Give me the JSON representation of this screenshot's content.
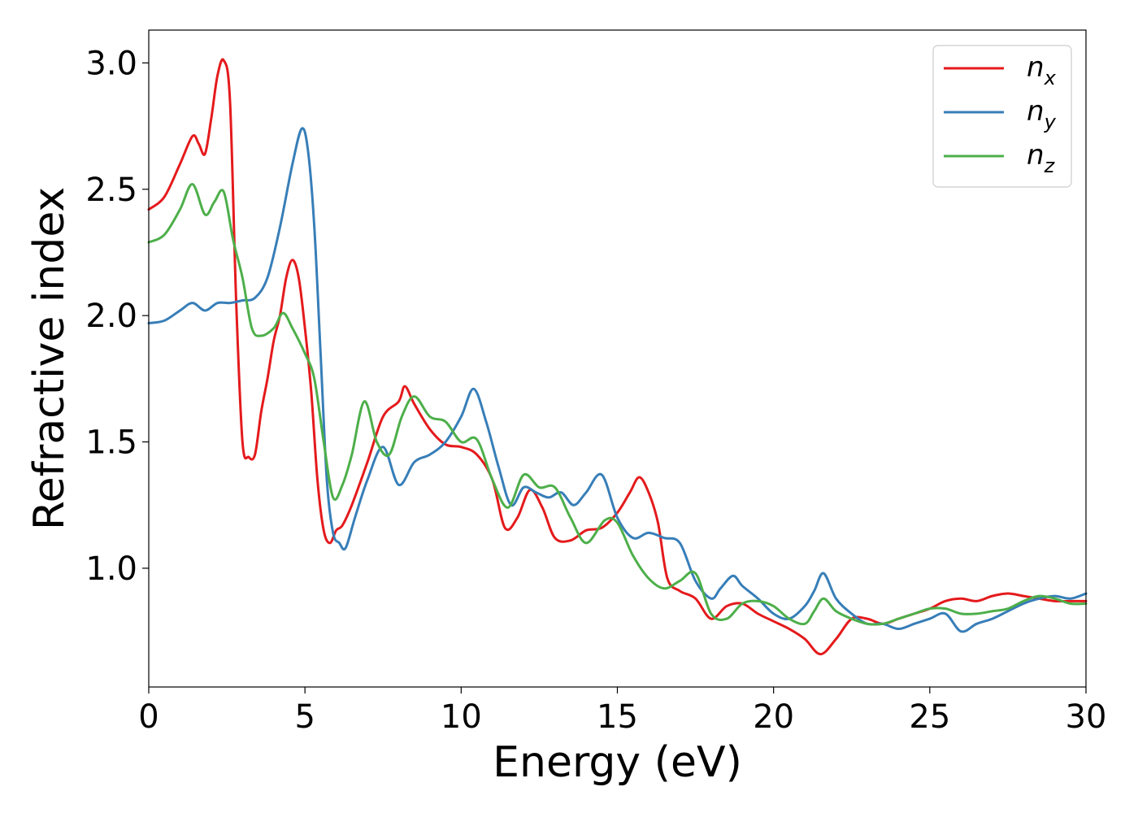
{
  "chart_data": {
    "type": "line",
    "title": "",
    "xlabel": "Energy (eV)",
    "ylabel": "Refractive index",
    "xlim": [
      0,
      30
    ],
    "ylim": [
      0.53,
      3.13
    ],
    "xticks": [
      "0",
      "5",
      "10",
      "15",
      "20",
      "25",
      "30"
    ],
    "yticks": [
      "1.0",
      "1.5",
      "2.0",
      "2.5",
      "3.0"
    ],
    "grid": false,
    "legend_position": "top-right",
    "series": [
      {
        "name": "n_x",
        "label_main": "n",
        "label_sub": "x",
        "color": "#e41a1c",
        "x": [
          0,
          0.5,
          1.0,
          1.4,
          1.6,
          1.8,
          2.0,
          2.2,
          2.4,
          2.6,
          2.8,
          3.0,
          3.2,
          3.4,
          3.6,
          3.8,
          4.0,
          4.2,
          4.4,
          4.6,
          4.8,
          5.0,
          5.2,
          5.4,
          5.6,
          5.8,
          6.0,
          6.2,
          6.5,
          7.0,
          7.5,
          8.0,
          8.2,
          8.5,
          9.0,
          9.5,
          10.0,
          10.5,
          11.0,
          11.4,
          11.8,
          12.2,
          12.6,
          13.0,
          13.5,
          14.0,
          14.5,
          15.0,
          15.4,
          15.7,
          16.0,
          16.3,
          16.6,
          17.0,
          17.5,
          18.0,
          18.5,
          19.0,
          19.5,
          20.0,
          20.5,
          21.0,
          21.5,
          22.0,
          22.5,
          23.0,
          23.5,
          24.0,
          24.5,
          25.0,
          25.5,
          26.0,
          26.5,
          27.0,
          27.5,
          28.0,
          28.5,
          29.0,
          29.5,
          30.0
        ],
        "values": [
          2.42,
          2.47,
          2.6,
          2.71,
          2.68,
          2.64,
          2.78,
          2.95,
          3.01,
          2.85,
          2.05,
          1.5,
          1.44,
          1.45,
          1.62,
          1.75,
          1.9,
          2.0,
          2.15,
          2.22,
          2.15,
          1.95,
          1.7,
          1.35,
          1.15,
          1.1,
          1.15,
          1.17,
          1.25,
          1.42,
          1.6,
          1.66,
          1.72,
          1.65,
          1.55,
          1.49,
          1.48,
          1.45,
          1.35,
          1.16,
          1.2,
          1.31,
          1.24,
          1.12,
          1.11,
          1.15,
          1.16,
          1.22,
          1.3,
          1.36,
          1.3,
          1.18,
          0.96,
          0.91,
          0.88,
          0.8,
          0.85,
          0.86,
          0.82,
          0.79,
          0.76,
          0.72,
          0.66,
          0.72,
          0.8,
          0.8,
          0.78,
          0.8,
          0.82,
          0.84,
          0.87,
          0.88,
          0.87,
          0.89,
          0.9,
          0.89,
          0.88,
          0.87,
          0.87,
          0.87
        ]
      },
      {
        "name": "n_y",
        "label_main": "n",
        "label_sub": "y",
        "color": "#377eb8",
        "x": [
          0,
          0.5,
          1.0,
          1.4,
          1.8,
          2.2,
          2.6,
          3.0,
          3.4,
          3.8,
          4.2,
          4.6,
          4.9,
          5.1,
          5.3,
          5.5,
          5.7,
          5.9,
          6.1,
          6.3,
          6.6,
          7.0,
          7.5,
          8.0,
          8.5,
          9.0,
          9.5,
          10.0,
          10.4,
          10.8,
          11.2,
          11.6,
          12.0,
          12.4,
          12.8,
          13.2,
          13.6,
          14.0,
          14.5,
          15.0,
          15.5,
          16.0,
          16.5,
          17.0,
          17.5,
          18.0,
          18.3,
          18.7,
          19.0,
          19.5,
          20.0,
          20.5,
          21.0,
          21.3,
          21.6,
          22.0,
          22.5,
          23.0,
          23.5,
          24.0,
          24.5,
          25.0,
          25.5,
          26.0,
          26.5,
          27.0,
          27.5,
          28.0,
          28.5,
          29.0,
          29.5,
          30.0
        ],
        "values": [
          1.97,
          1.98,
          2.02,
          2.05,
          2.02,
          2.05,
          2.05,
          2.06,
          2.07,
          2.15,
          2.35,
          2.6,
          2.74,
          2.65,
          2.35,
          1.85,
          1.35,
          1.14,
          1.1,
          1.08,
          1.2,
          1.35,
          1.48,
          1.33,
          1.42,
          1.45,
          1.5,
          1.6,
          1.71,
          1.58,
          1.4,
          1.25,
          1.32,
          1.3,
          1.28,
          1.3,
          1.25,
          1.3,
          1.37,
          1.2,
          1.12,
          1.14,
          1.12,
          1.1,
          0.95,
          0.88,
          0.92,
          0.97,
          0.93,
          0.88,
          0.82,
          0.8,
          0.85,
          0.91,
          0.98,
          0.88,
          0.82,
          0.78,
          0.78,
          0.76,
          0.78,
          0.8,
          0.82,
          0.75,
          0.78,
          0.8,
          0.83,
          0.86,
          0.88,
          0.89,
          0.88,
          0.9
        ]
      },
      {
        "name": "n_z",
        "label_main": "n",
        "label_sub": "z",
        "color": "#4daf4a",
        "x": [
          0,
          0.5,
          1.0,
          1.4,
          1.8,
          2.1,
          2.4,
          2.7,
          3.0,
          3.3,
          3.6,
          4.0,
          4.3,
          4.6,
          5.0,
          5.3,
          5.6,
          5.9,
          6.2,
          6.5,
          6.9,
          7.3,
          7.7,
          8.1,
          8.5,
          9.0,
          9.5,
          10.0,
          10.5,
          11.0,
          11.5,
          12.0,
          12.5,
          13.0,
          13.5,
          14.0,
          14.6,
          15.0,
          15.5,
          16.0,
          16.5,
          17.0,
          17.5,
          18.0,
          18.5,
          19.0,
          19.5,
          20.0,
          20.5,
          21.0,
          21.3,
          21.6,
          22.0,
          22.5,
          23.0,
          23.5,
          24.0,
          24.5,
          25.0,
          25.5,
          26.0,
          26.5,
          27.0,
          27.5,
          28.0,
          28.5,
          29.0,
          29.5,
          30.0
        ],
        "values": [
          2.29,
          2.32,
          2.42,
          2.52,
          2.4,
          2.45,
          2.49,
          2.3,
          2.15,
          1.95,
          1.92,
          1.95,
          2.01,
          1.95,
          1.85,
          1.75,
          1.5,
          1.28,
          1.33,
          1.45,
          1.66,
          1.5,
          1.45,
          1.6,
          1.68,
          1.6,
          1.58,
          1.5,
          1.51,
          1.35,
          1.24,
          1.37,
          1.32,
          1.32,
          1.2,
          1.1,
          1.19,
          1.18,
          1.05,
          0.96,
          0.92,
          0.95,
          0.98,
          0.82,
          0.8,
          0.86,
          0.87,
          0.85,
          0.8,
          0.78,
          0.83,
          0.88,
          0.83,
          0.8,
          0.78,
          0.78,
          0.8,
          0.82,
          0.84,
          0.84,
          0.82,
          0.82,
          0.83,
          0.84,
          0.87,
          0.89,
          0.88,
          0.86,
          0.86
        ]
      }
    ]
  }
}
